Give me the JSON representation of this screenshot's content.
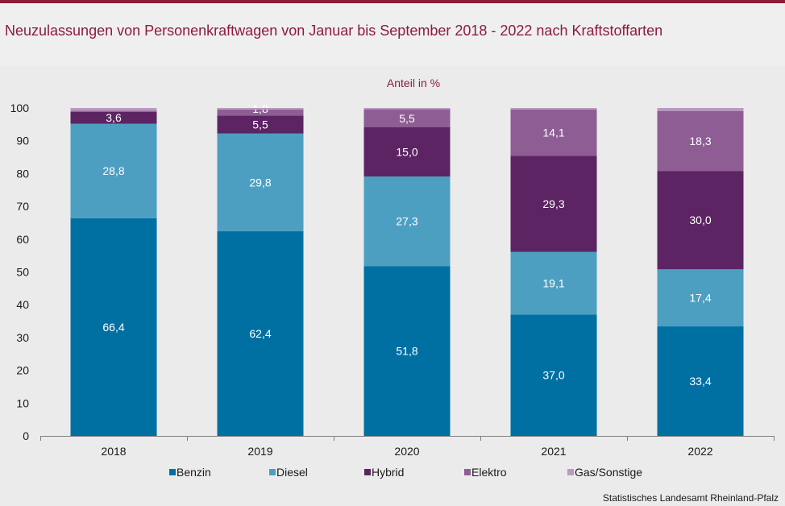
{
  "title": "Neuzulassungen von Personenkraftwagen von Januar bis September 2018 - 2022 nach Kraftstoffarten",
  "source": "Statistisches Landesamt Rheinland-Pfalz",
  "chart_data": {
    "type": "bar",
    "stacked": true,
    "subtitle": "Anteil in %",
    "categories": [
      "2018",
      "2019",
      "2020",
      "2021",
      "2022"
    ],
    "ylim": [
      0,
      100
    ],
    "yticks": [
      0,
      10,
      20,
      30,
      40,
      50,
      60,
      70,
      80,
      90,
      100
    ],
    "grid": false,
    "legend_position": "bottom",
    "series": [
      {
        "name": "Benzin",
        "color": "#0070a3",
        "label_color": "#ffffff",
        "values": [
          66.4,
          62.4,
          51.8,
          37.0,
          33.4
        ],
        "labels": [
          "66,4",
          "62,4",
          "51,8",
          "37,0",
          "33,4"
        ]
      },
      {
        "name": "Diesel",
        "color": "#4d9fc2",
        "label_color": "#ffffff",
        "values": [
          28.8,
          29.8,
          27.3,
          19.1,
          17.4
        ],
        "labels": [
          "28,8",
          "29,8",
          "27,3",
          "19,1",
          "17,4"
        ]
      },
      {
        "name": "Hybrid",
        "color": "#5c2462",
        "label_color": "#ffffff",
        "values": [
          3.6,
          5.5,
          15.0,
          29.3,
          30.0
        ],
        "labels": [
          "3,6",
          "5,5",
          "15,0",
          "29,3",
          "30,0"
        ]
      },
      {
        "name": "Elektro",
        "color": "#8d5d94",
        "label_color": "#ffffff",
        "values": [
          0.4,
          1.8,
          5.5,
          14.1,
          18.3
        ],
        "labels": [
          "",
          "1,8",
          "5,5",
          "14,1",
          "18,3"
        ]
      },
      {
        "name": "Gas/Sonstige",
        "color": "#bb9ac0",
        "label_color": "#ffffff",
        "values": [
          0.8,
          0.5,
          0.4,
          0.5,
          0.9
        ],
        "labels": [
          "",
          "",
          "",
          "",
          ""
        ]
      }
    ]
  }
}
